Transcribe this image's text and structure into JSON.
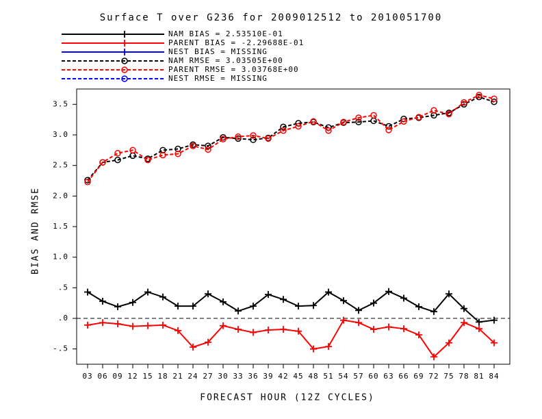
{
  "chart_data": {
    "type": "line",
    "title": "Surface T over G236 for 2009012512 to 2010051700",
    "x_label": "FORECAST HOUR (12Z CYCLES)",
    "y_label": "BIAS AND RMSE",
    "categories": [
      "03",
      "06",
      "09",
      "12",
      "15",
      "18",
      "21",
      "24",
      "27",
      "30",
      "33",
      "36",
      "39",
      "42",
      "45",
      "48",
      "51",
      "54",
      "57",
      "60",
      "63",
      "66",
      "69",
      "72",
      "75",
      "78",
      "81",
      "84"
    ],
    "ylim": [
      -0.75,
      3.75
    ],
    "yticks": [
      {
        "value": -0.5,
        "label": "-.5"
      },
      {
        "value": 0,
        "label": ".0"
      },
      {
        "value": 0.5,
        "label": ".5"
      },
      {
        "value": 1,
        "label": "1.0"
      },
      1.5,
      {
        "value": 2,
        "label": "2.0"
      },
      2.5,
      {
        "value": 3,
        "label": "3.0"
      },
      3.5
    ],
    "reference_line": 0,
    "series": [
      {
        "name": "NAM BIAS =  2.53510E-01",
        "color": "#000000",
        "marker": "plus",
        "dashed": false,
        "values": [
          0.43,
          0.28,
          0.19,
          0.26,
          0.43,
          0.35,
          0.2,
          0.2,
          0.4,
          0.27,
          0.12,
          0.2,
          0.39,
          0.31,
          0.2,
          0.21,
          0.43,
          0.29,
          0.13,
          0.25,
          0.44,
          0.33,
          0.19,
          0.11,
          0.4,
          0.16,
          -0.06,
          -0.03
        ]
      },
      {
        "name": "PARENT BIAS = -2.29688E-01",
        "color": "#ff0000",
        "marker": "plus",
        "dashed": false,
        "values": [
          -0.11,
          -0.07,
          -0.09,
          -0.13,
          -0.12,
          -0.11,
          -0.2,
          -0.47,
          -0.39,
          -0.12,
          -0.18,
          -0.23,
          -0.19,
          -0.18,
          -0.21,
          -0.5,
          -0.46,
          -0.03,
          -0.07,
          -0.18,
          -0.14,
          -0.17,
          -0.27,
          -0.63,
          -0.4,
          -0.07,
          -0.17,
          -0.4
        ]
      },
      {
        "name": "NEST BIAS = MISSING",
        "color": "#0000ff",
        "marker": "plus",
        "dashed": false,
        "values": [
          null,
          null,
          null,
          null,
          null,
          null,
          null,
          null,
          null,
          null,
          null,
          null,
          null,
          null,
          null,
          null,
          null,
          null,
          null,
          null,
          null,
          null,
          null,
          null,
          null,
          null,
          null,
          null
        ]
      },
      {
        "name": "NAM RMSE =  3.03505E+00",
        "color": "#000000",
        "marker": "circle",
        "dashed": true,
        "values": [
          2.26,
          2.55,
          2.59,
          2.66,
          2.61,
          2.75,
          2.77,
          2.84,
          2.82,
          2.96,
          2.94,
          2.92,
          2.95,
          3.13,
          3.19,
          3.21,
          3.12,
          3.2,
          3.21,
          3.23,
          3.14,
          3.26,
          3.28,
          3.32,
          3.36,
          3.5,
          3.62,
          3.54
        ]
      },
      {
        "name": "PARENT RMSE =  3.03768E+00",
        "color": "#ff0000",
        "marker": "circle",
        "dashed": true,
        "values": [
          2.23,
          2.55,
          2.7,
          2.75,
          2.59,
          2.67,
          2.69,
          2.82,
          2.76,
          2.93,
          2.97,
          2.99,
          2.94,
          3.07,
          3.14,
          3.22,
          3.07,
          3.21,
          3.28,
          3.32,
          3.08,
          3.22,
          3.29,
          3.4,
          3.34,
          3.53,
          3.65,
          3.59
        ]
      },
      {
        "name": "NEST RMSE = MISSING",
        "color": "#0000ff",
        "marker": "circle",
        "dashed": true,
        "values": [
          null,
          null,
          null,
          null,
          null,
          null,
          null,
          null,
          null,
          null,
          null,
          null,
          null,
          null,
          null,
          null,
          null,
          null,
          null,
          null,
          null,
          null,
          null,
          null,
          null,
          null,
          null,
          null
        ]
      }
    ]
  }
}
